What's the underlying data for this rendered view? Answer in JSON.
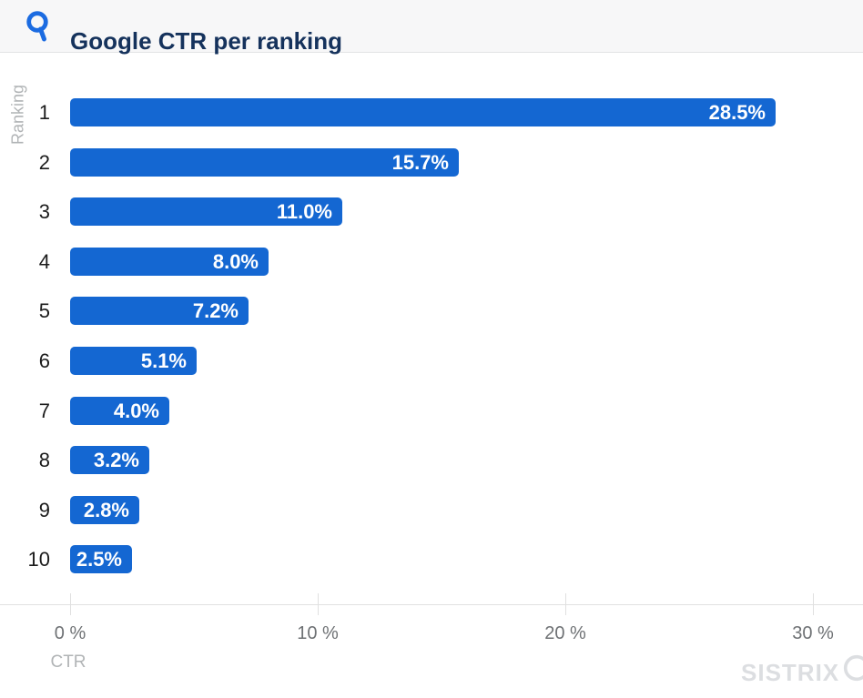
{
  "header": {
    "title": "Google CTR per ranking"
  },
  "chart_data": {
    "type": "bar",
    "orientation": "horizontal",
    "title": "Google CTR per ranking",
    "ylabel": "Ranking",
    "xlabel": "CTR",
    "categories": [
      "1",
      "2",
      "3",
      "4",
      "5",
      "6",
      "7",
      "8",
      "9",
      "10"
    ],
    "values": [
      28.5,
      15.7,
      11.0,
      8.0,
      7.2,
      5.1,
      4.0,
      3.2,
      2.8,
      2.5
    ],
    "value_labels": [
      "28.5%",
      "15.7%",
      "11.0%",
      "8.0%",
      "7.2%",
      "5.1%",
      "4.0%",
      "3.2%",
      "2.8%",
      "2.5%"
    ],
    "x_ticks": [
      {
        "value": 0,
        "label": "0 %"
      },
      {
        "value": 10,
        "label": "10 %"
      },
      {
        "value": 20,
        "label": "20 %"
      },
      {
        "value": 30,
        "label": "30 %"
      }
    ],
    "xlim": [
      0,
      32
    ],
    "grid": false,
    "legend": false
  },
  "watermark": {
    "text": "SISTRIX",
    "icon": "magnifier-icon"
  },
  "colors": {
    "bar": "#1467d2",
    "accent": "#1b6be1",
    "title_text": "#15325c",
    "value_text": "#ffffff",
    "cat_text": "#1c1c1c",
    "tick_text": "#6e7174",
    "muted_text": "#b1b4b6",
    "axis": "#e0e0e0",
    "watermark": "#dcdee1",
    "header_bg": "#f7f7f8",
    "header_border": "#e3e4e5"
  }
}
